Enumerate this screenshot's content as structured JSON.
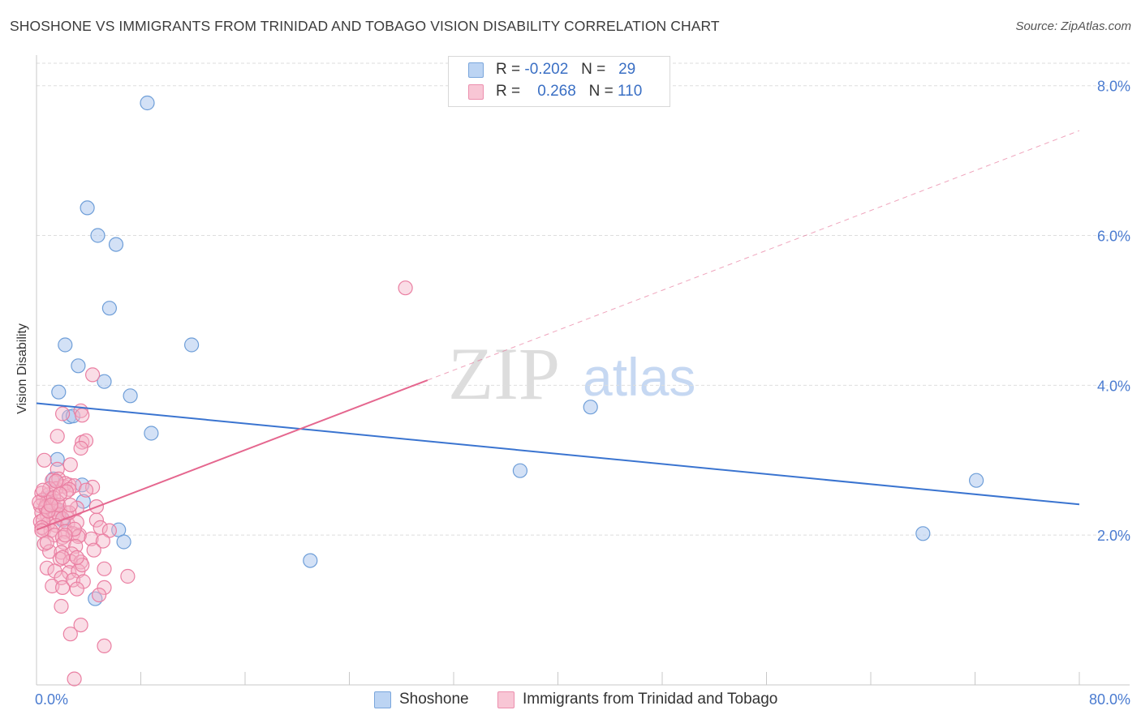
{
  "header": {
    "title": "SHOSHONE VS IMMIGRANTS FROM TRINIDAD AND TOBAGO VISION DISABILITY CORRELATION CHART",
    "source": "Source: ZipAtlas.com"
  },
  "watermark": {
    "zip": "ZIP",
    "atlas": "atlas"
  },
  "legend": {
    "rows": [
      {
        "r_label": "R =",
        "r_value": "-0.202",
        "n_label": "N =",
        "n_value": "29",
        "color": "#a8c8f0"
      },
      {
        "r_label": "R =",
        "r_value": "0.268",
        "n_label": "N =",
        "n_value": "110",
        "color": "#f6b4c8"
      }
    ]
  },
  "colors": {
    "blue_fill": "#aec9ee",
    "blue_stroke": "#6e9ed8",
    "blue_line": "#3a74d0",
    "pink_fill": "#f5b3c8",
    "pink_stroke": "#ea7fa2",
    "pink_line": "#e5678f",
    "axis_text": "#4a7bd0",
    "grid": "#dedede"
  },
  "chart_data": {
    "type": "scatter",
    "title": "SHOSHONE VS IMMIGRANTS FROM TRINIDAD AND TOBAGO VISION DISABILITY CORRELATION CHART",
    "xlabel": "",
    "ylabel": "Vision Disability",
    "xlim": [
      0,
      80
    ],
    "ylim": [
      0,
      8.3
    ],
    "x_tick_labels": [
      "0.0%",
      "80.0%"
    ],
    "y_tick_labels": [
      "2.0%",
      "4.0%",
      "6.0%",
      "8.0%"
    ],
    "y_ticks": [
      2,
      4,
      6,
      8
    ],
    "grid": true,
    "legend_position": "bottom",
    "series": [
      {
        "name": "Shoshone",
        "points": [
          [
            8.5,
            7.77
          ],
          [
            3.9,
            6.37
          ],
          [
            4.7,
            6.0
          ],
          [
            6.1,
            5.88
          ],
          [
            5.6,
            5.03
          ],
          [
            2.2,
            4.54
          ],
          [
            3.2,
            4.26
          ],
          [
            5.2,
            4.05
          ],
          [
            1.7,
            3.91
          ],
          [
            7.2,
            3.86
          ],
          [
            11.9,
            4.54
          ],
          [
            42.5,
            3.71
          ],
          [
            2.5,
            3.58
          ],
          [
            2.8,
            3.59
          ],
          [
            8.8,
            3.36
          ],
          [
            1.6,
            3.01
          ],
          [
            1.3,
            2.75
          ],
          [
            3.5,
            2.67
          ],
          [
            3.6,
            2.45
          ],
          [
            6.3,
            2.07
          ],
          [
            6.7,
            1.91
          ],
          [
            21.0,
            1.66
          ],
          [
            37.1,
            2.86
          ],
          [
            68.0,
            2.02
          ],
          [
            72.1,
            2.73
          ],
          [
            4.5,
            1.15
          ],
          [
            1.0,
            2.5
          ],
          [
            2.0,
            2.2
          ],
          [
            1.5,
            2.35
          ]
        ],
        "trend": {
          "x": [
            0,
            80
          ],
          "y": [
            3.76,
            2.41
          ]
        }
      },
      {
        "name": "Immigrants from Trinidad and Tobago",
        "points": [
          [
            28.3,
            5.3
          ],
          [
            4.3,
            4.14
          ],
          [
            3.4,
            3.66
          ],
          [
            2.0,
            3.62
          ],
          [
            3.5,
            3.6
          ],
          [
            1.6,
            3.32
          ],
          [
            3.5,
            3.24
          ],
          [
            3.8,
            3.26
          ],
          [
            3.4,
            3.16
          ],
          [
            0.6,
            3.0
          ],
          [
            2.6,
            2.94
          ],
          [
            1.6,
            2.88
          ],
          [
            1.2,
            2.73
          ],
          [
            1.7,
            2.75
          ],
          [
            1.5,
            2.62
          ],
          [
            2.1,
            2.65
          ],
          [
            2.5,
            2.67
          ],
          [
            2.2,
            2.69
          ],
          [
            2.9,
            2.66
          ],
          [
            4.3,
            2.64
          ],
          [
            2.5,
            2.61
          ],
          [
            0.4,
            2.56
          ],
          [
            0.9,
            2.54
          ],
          [
            1.1,
            2.48
          ],
          [
            0.5,
            2.47
          ],
          [
            0.8,
            2.44
          ],
          [
            1.3,
            2.42
          ],
          [
            1.6,
            2.45
          ],
          [
            0.3,
            2.39
          ],
          [
            0.7,
            2.36
          ],
          [
            1.2,
            2.34
          ],
          [
            1.8,
            2.33
          ],
          [
            2.3,
            2.3
          ],
          [
            4.6,
            2.38
          ],
          [
            3.1,
            2.36
          ],
          [
            0.4,
            2.3
          ],
          [
            0.8,
            2.27
          ],
          [
            1.4,
            2.24
          ],
          [
            1.7,
            2.27
          ],
          [
            2.0,
            2.22
          ],
          [
            0.3,
            2.18
          ],
          [
            0.9,
            2.16
          ],
          [
            1.5,
            2.13
          ],
          [
            2.4,
            2.15
          ],
          [
            3.1,
            2.17
          ],
          [
            4.6,
            2.2
          ],
          [
            0.6,
            2.08
          ],
          [
            1.1,
            2.06
          ],
          [
            2.2,
            2.05
          ],
          [
            2.8,
            2.02
          ],
          [
            3.3,
            2.0
          ],
          [
            4.9,
            2.1
          ],
          [
            5.6,
            2.06
          ],
          [
            1.4,
            2.0
          ],
          [
            2.0,
            1.97
          ],
          [
            3.2,
            1.98
          ],
          [
            4.2,
            1.95
          ],
          [
            0.6,
            1.88
          ],
          [
            2.1,
            1.9
          ],
          [
            3.0,
            1.85
          ],
          [
            5.1,
            1.92
          ],
          [
            1.0,
            1.78
          ],
          [
            1.9,
            1.77
          ],
          [
            2.7,
            1.75
          ],
          [
            4.4,
            1.8
          ],
          [
            1.8,
            1.68
          ],
          [
            2.6,
            1.65
          ],
          [
            3.4,
            1.64
          ],
          [
            0.8,
            1.56
          ],
          [
            1.4,
            1.52
          ],
          [
            2.5,
            1.5
          ],
          [
            3.2,
            1.52
          ],
          [
            5.2,
            1.55
          ],
          [
            1.9,
            1.43
          ],
          [
            2.8,
            1.4
          ],
          [
            3.6,
            1.38
          ],
          [
            7.0,
            1.45
          ],
          [
            1.2,
            1.32
          ],
          [
            2.0,
            1.3
          ],
          [
            3.1,
            1.28
          ],
          [
            5.2,
            1.3
          ],
          [
            0.7,
            2.38
          ],
          [
            1.0,
            2.62
          ],
          [
            2.3,
            2.58
          ],
          [
            0.5,
            2.2
          ],
          [
            0.2,
            2.44
          ],
          [
            0.5,
            2.6
          ],
          [
            3.8,
            2.6
          ],
          [
            2.5,
            2.3
          ],
          [
            1.3,
            2.5
          ],
          [
            3.5,
            1.6
          ],
          [
            2.0,
            1.7
          ],
          [
            0.9,
            2.32
          ],
          [
            1.7,
            2.4
          ],
          [
            2.9,
            2.08
          ],
          [
            4.8,
            1.2
          ],
          [
            1.9,
            1.05
          ],
          [
            2.6,
            0.68
          ],
          [
            3.4,
            0.8
          ],
          [
            5.2,
            0.52
          ],
          [
            2.9,
            0.08
          ],
          [
            0.4,
            2.1
          ],
          [
            1.1,
            2.4
          ],
          [
            0.8,
            1.9
          ],
          [
            3.1,
            1.7
          ],
          [
            2.6,
            2.4
          ],
          [
            0.4,
            2.06
          ],
          [
            1.8,
            2.55
          ],
          [
            2.2,
            2.0
          ],
          [
            1.5,
            2.72
          ]
        ],
        "trend": {
          "x": [
            0,
            80
          ],
          "y": [
            2.07,
            7.4
          ],
          "solid_until_x": 30
        }
      }
    ]
  }
}
